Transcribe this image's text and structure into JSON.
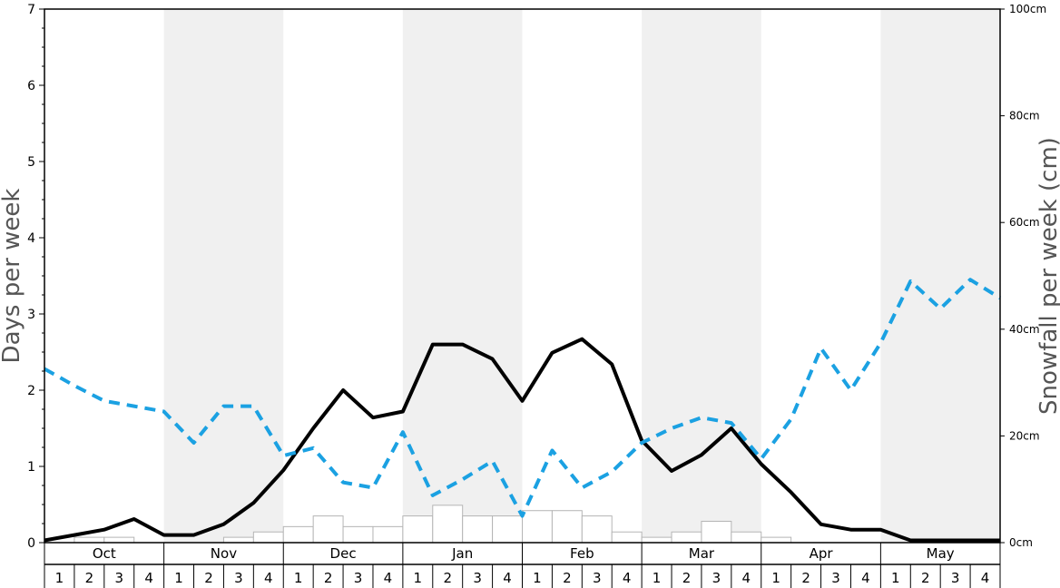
{
  "chart_data": {
    "type": "bar+line",
    "ylabel_left": "Days per week",
    "ylabel_right": "Snowfall per week (cm)",
    "left_ylim": [
      0,
      7
    ],
    "left_ticks": [
      "0",
      "1",
      "2",
      "3",
      "4",
      "5",
      "6",
      "7"
    ],
    "right_ylim": [
      0,
      100
    ],
    "right_ticks": [
      "0cm",
      "20cm",
      "40cm",
      "60cm",
      "80cm",
      "100cm"
    ],
    "months": [
      "Oct",
      "Nov",
      "Dec",
      "Jan",
      "Feb",
      "Mar",
      "Apr",
      "May"
    ],
    "weeks": [
      "1",
      "2",
      "3",
      "4"
    ],
    "shaded_months": [
      "Nov",
      "Jan",
      "Mar",
      "May"
    ],
    "grid": false,
    "series": [
      {
        "kind": "bar",
        "axis": "right",
        "values": [
          0,
          1,
          1,
          0,
          0,
          0,
          1,
          2,
          3,
          5,
          3,
          3,
          5,
          7,
          5,
          5,
          6,
          6,
          5,
          2,
          1,
          2,
          4,
          2,
          1,
          0,
          0,
          0,
          0,
          0,
          0,
          0
        ]
      },
      {
        "kind": "line",
        "axis": "left",
        "style": "solid",
        "color": "#000000",
        "values": [
          0.03,
          0.1,
          0.17,
          0.31,
          0.1,
          0.1,
          0.24,
          0.52,
          0.95,
          1.5,
          2.0,
          1.64,
          1.72,
          2.6,
          2.6,
          2.41,
          1.86,
          2.49,
          2.67,
          2.34,
          1.34,
          0.94,
          1.15,
          1.5,
          1.03,
          0.66,
          0.24,
          0.17,
          0.17,
          0.03,
          0.03,
          0.03,
          0.03
        ]
      },
      {
        "kind": "line",
        "axis": "left",
        "style": "dashed",
        "color": "#1ba1e2",
        "values": [
          2.28,
          2.06,
          1.86,
          1.79,
          1.72,
          1.31,
          1.79,
          1.79,
          1.14,
          1.24,
          0.79,
          0.72,
          1.45,
          0.62,
          0.83,
          1.07,
          0.35,
          1.21,
          0.72,
          0.93,
          1.31,
          1.5,
          1.64,
          1.57,
          1.1,
          1.62,
          2.55,
          2.0,
          2.62,
          3.43,
          3.07,
          3.45,
          3.21
        ]
      }
    ]
  }
}
